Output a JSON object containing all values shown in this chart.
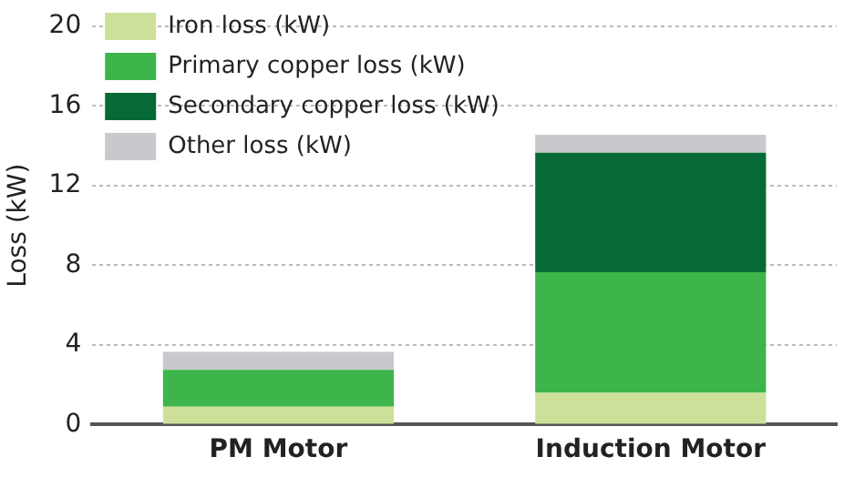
{
  "chart_data": {
    "type": "bar",
    "stacked": true,
    "ylabel": "Loss (kW)",
    "categories": [
      "PM Motor",
      "Induction Motor"
    ],
    "series": [
      {
        "name": "Iron loss (kW)",
        "color": "#cde09a",
        "values": [
          0.9,
          1.6
        ]
      },
      {
        "name": "Primary copper loss (kW)",
        "color": "#3db54a",
        "values": [
          1.85,
          6.05
        ]
      },
      {
        "name": "Secondary copper loss (kW)",
        "color": "#076a36",
        "values": [
          0,
          6.0
        ]
      },
      {
        "name": "Other loss (kW)",
        "color": "#c8c9cc",
        "values": [
          0.9,
          0.9
        ]
      }
    ],
    "ylim": [
      0,
      20
    ],
    "yticks": [
      0,
      4,
      8,
      12,
      16,
      20
    ],
    "grid": "y",
    "legend": "top left"
  }
}
